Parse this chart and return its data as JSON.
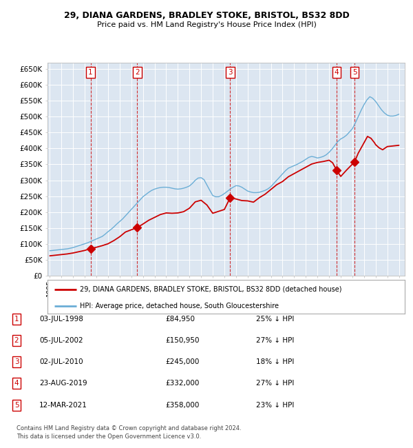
{
  "title1": "29, DIANA GARDENS, BRADLEY STOKE, BRISTOL, BS32 8DD",
  "title2": "Price paid vs. HM Land Registry's House Price Index (HPI)",
  "background_color": "#dce6f1",
  "plot_bg_color": "#dce6f1",
  "hpi_color": "#6baed6",
  "price_color": "#cc0000",
  "sale_dates_num": [
    1998.503,
    2002.508,
    2010.497,
    2019.644,
    2021.192
  ],
  "sale_prices": [
    84950,
    150950,
    245000,
    332000,
    358000
  ],
  "sale_labels": [
    "1",
    "2",
    "3",
    "4",
    "5"
  ],
  "legend_entry1": "29, DIANA GARDENS, BRADLEY STOKE, BRISTOL, BS32 8DD (detached house)",
  "legend_entry2": "HPI: Average price, detached house, South Gloucestershire",
  "table_rows": [
    [
      "1",
      "03-JUL-1998",
      "£84,950",
      "25% ↓ HPI"
    ],
    [
      "2",
      "05-JUL-2002",
      "£150,950",
      "27% ↓ HPI"
    ],
    [
      "3",
      "02-JUL-2010",
      "£245,000",
      "18% ↓ HPI"
    ],
    [
      "4",
      "23-AUG-2019",
      "£332,000",
      "27% ↓ HPI"
    ],
    [
      "5",
      "12-MAR-2021",
      "£358,000",
      "23% ↓ HPI"
    ]
  ],
  "footer": "Contains HM Land Registry data © Crown copyright and database right 2024.\nThis data is licensed under the Open Government Licence v3.0.",
  "ylim": [
    0,
    670000
  ],
  "yticks": [
    0,
    50000,
    100000,
    150000,
    200000,
    250000,
    300000,
    350000,
    400000,
    450000,
    500000,
    550000,
    600000,
    650000
  ],
  "ytick_labels": [
    "£0",
    "£50K",
    "£100K",
    "£150K",
    "£200K",
    "£250K",
    "£300K",
    "£350K",
    "£400K",
    "£450K",
    "£500K",
    "£550K",
    "£600K",
    "£650K"
  ],
  "xlim_start": 1994.8,
  "xlim_end": 2025.5,
  "hpi_x": [
    1995.0,
    1995.25,
    1995.5,
    1995.75,
    1996.0,
    1996.25,
    1996.5,
    1996.75,
    1997.0,
    1997.25,
    1997.5,
    1997.75,
    1998.0,
    1998.25,
    1998.5,
    1998.75,
    1999.0,
    1999.25,
    1999.5,
    1999.75,
    2000.0,
    2000.25,
    2000.5,
    2000.75,
    2001.0,
    2001.25,
    2001.5,
    2001.75,
    2002.0,
    2002.25,
    2002.5,
    2002.75,
    2003.0,
    2003.25,
    2003.5,
    2003.75,
    2004.0,
    2004.25,
    2004.5,
    2004.75,
    2005.0,
    2005.25,
    2005.5,
    2005.75,
    2006.0,
    2006.25,
    2006.5,
    2006.75,
    2007.0,
    2007.25,
    2007.5,
    2007.75,
    2008.0,
    2008.25,
    2008.5,
    2008.75,
    2009.0,
    2009.25,
    2009.5,
    2009.75,
    2010.0,
    2010.25,
    2010.5,
    2010.75,
    2011.0,
    2011.25,
    2011.5,
    2011.75,
    2012.0,
    2012.25,
    2012.5,
    2012.75,
    2013.0,
    2013.25,
    2013.5,
    2013.75,
    2014.0,
    2014.25,
    2014.5,
    2014.75,
    2015.0,
    2015.25,
    2015.5,
    2015.75,
    2016.0,
    2016.25,
    2016.5,
    2016.75,
    2017.0,
    2017.25,
    2017.5,
    2017.75,
    2018.0,
    2018.25,
    2018.5,
    2018.75,
    2019.0,
    2019.25,
    2019.5,
    2019.75,
    2020.0,
    2020.25,
    2020.5,
    2020.75,
    2021.0,
    2021.25,
    2021.5,
    2021.75,
    2022.0,
    2022.25,
    2022.5,
    2022.75,
    2023.0,
    2023.25,
    2023.5,
    2023.75,
    2024.0,
    2024.25,
    2024.5,
    2024.75,
    2025.0
  ],
  "hpi_y": [
    78000,
    79000,
    80000,
    81000,
    82000,
    83000,
    84000,
    86000,
    88000,
    91000,
    94000,
    97000,
    100000,
    103000,
    107000,
    111000,
    115000,
    119000,
    123000,
    130000,
    138000,
    145000,
    153000,
    162000,
    170000,
    178000,
    188000,
    198000,
    208000,
    218000,
    228000,
    238000,
    248000,
    255000,
    262000,
    268000,
    272000,
    275000,
    277000,
    278000,
    278000,
    277000,
    275000,
    273000,
    272000,
    273000,
    275000,
    278000,
    282000,
    290000,
    300000,
    307000,
    308000,
    302000,
    285000,
    268000,
    252000,
    248000,
    248000,
    252000,
    258000,
    265000,
    272000,
    278000,
    283000,
    282000,
    278000,
    272000,
    266000,
    263000,
    261000,
    261000,
    262000,
    265000,
    268000,
    273000,
    280000,
    290000,
    300000,
    310000,
    320000,
    330000,
    338000,
    342000,
    346000,
    350000,
    355000,
    360000,
    366000,
    372000,
    375000,
    373000,
    370000,
    372000,
    375000,
    380000,
    388000,
    398000,
    410000,
    422000,
    430000,
    435000,
    442000,
    452000,
    462000,
    480000,
    500000,
    520000,
    538000,
    553000,
    563000,
    558000,
    548000,
    535000,
    522000,
    512000,
    505000,
    502000,
    502000,
    504000,
    508000
  ],
  "price_x": [
    1995.0,
    1995.5,
    1996.0,
    1996.5,
    1997.0,
    1997.5,
    1998.0,
    1998.503,
    1999.0,
    1999.5,
    2000.0,
    2000.5,
    2001.0,
    2001.5,
    2002.0,
    2002.508,
    2003.0,
    2003.5,
    2004.0,
    2004.5,
    2005.0,
    2005.5,
    2006.0,
    2006.5,
    2007.0,
    2007.5,
    2008.0,
    2008.5,
    2009.0,
    2009.5,
    2010.0,
    2010.497,
    2011.0,
    2011.5,
    2012.0,
    2012.5,
    2013.0,
    2013.5,
    2014.0,
    2014.5,
    2015.0,
    2015.5,
    2016.0,
    2016.5,
    2017.0,
    2017.5,
    2018.0,
    2018.5,
    2019.0,
    2019.3,
    2019.644,
    2020.0,
    2020.5,
    2021.192,
    2021.5,
    2022.0,
    2022.3,
    2022.6,
    2022.9,
    2023.0,
    2023.3,
    2023.6,
    2024.0,
    2024.5,
    2025.0
  ],
  "price_y": [
    62000,
    64000,
    66000,
    68000,
    71000,
    75000,
    79000,
    84950,
    89000,
    94000,
    100000,
    110000,
    122000,
    137000,
    144000,
    150950,
    162000,
    174000,
    183000,
    192000,
    197000,
    196000,
    197000,
    201000,
    212000,
    232000,
    237000,
    222000,
    196000,
    202000,
    208000,
    245000,
    241000,
    236000,
    235000,
    231000,
    245000,
    256000,
    271000,
    286000,
    296000,
    311000,
    321000,
    331000,
    341000,
    351000,
    356000,
    359000,
    363000,
    355000,
    332000,
    312000,
    332000,
    358000,
    385000,
    418000,
    438000,
    432000,
    418000,
    412000,
    402000,
    396000,
    406000,
    408000,
    410000
  ]
}
